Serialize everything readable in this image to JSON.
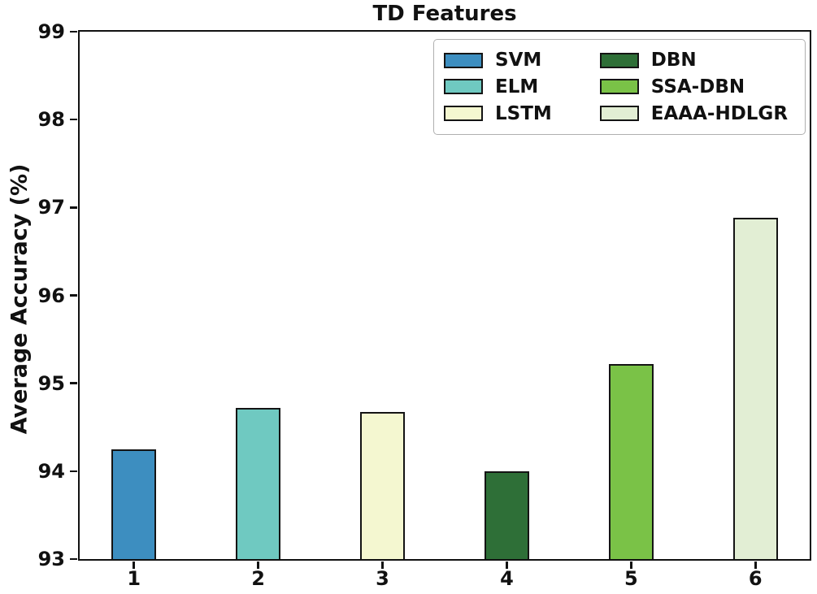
{
  "chart_data": {
    "type": "bar",
    "title": "TD Features",
    "xlabel": "",
    "ylabel": "Average Accuracy (%)",
    "categories": [
      "1",
      "2",
      "3",
      "4",
      "5",
      "6"
    ],
    "series": [
      {
        "name": "SVM",
        "color": "#3d8ec0",
        "value": 94.25
      },
      {
        "name": "ELM",
        "color": "#6fc9c1",
        "value": 94.72
      },
      {
        "name": "LSTM",
        "color": "#f4f7d0",
        "value": 94.67
      },
      {
        "name": "DBN",
        "color": "#2e6f37",
        "value": 94.0
      },
      {
        "name": "SSA-DBN",
        "color": "#7ac247",
        "value": 95.22
      },
      {
        "name": "EAAA-HDLGR",
        "color": "#e2eed4",
        "value": 96.88
      }
    ],
    "ylim": [
      93,
      99
    ],
    "yticks": [
      93,
      94,
      95,
      96,
      97,
      98,
      99
    ],
    "grid": false,
    "legend_position": "upper right",
    "legend_columns": 2,
    "bar_edge_color": "#141414",
    "axis_color": "#111111"
  }
}
